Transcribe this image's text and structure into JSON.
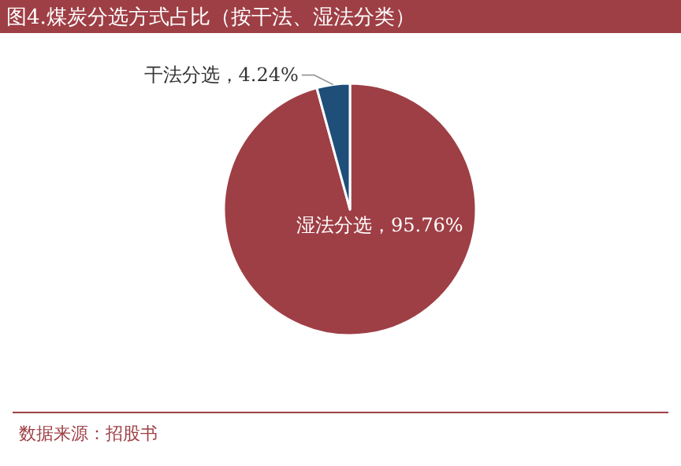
{
  "chart_data": {
    "type": "pie",
    "title": "图4.煤炭分选方式占比（按干法、湿法分类）",
    "categories": [
      "湿法分选",
      "干法分选"
    ],
    "values": [
      95.76,
      4.24
    ],
    "value_labels": [
      "95.76%",
      "4.24%"
    ],
    "colors": [
      "#9e3f45",
      "#1f4e79"
    ],
    "annotations": [
      "数据来源：招股书"
    ]
  }
}
